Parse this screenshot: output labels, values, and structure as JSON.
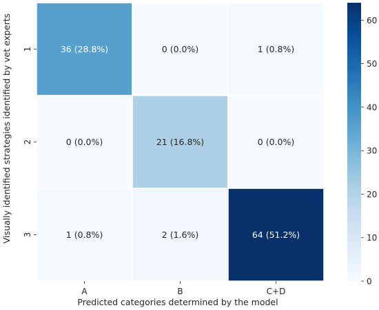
{
  "chart_data": {
    "type": "heatmap",
    "title": "",
    "xlabel": "Predicted categories determined by the model",
    "ylabel": "Visually identified strategies identified by vet experts",
    "x_categories": [
      "A",
      "B",
      "C+D"
    ],
    "y_categories": [
      "1",
      "2",
      "3"
    ],
    "values": [
      [
        36,
        0,
        1
      ],
      [
        0,
        21,
        0
      ],
      [
        1,
        2,
        64
      ]
    ],
    "cell_labels": [
      [
        "36 (28.8%)",
        "0 (0.0%)",
        "1 (0.8%)"
      ],
      [
        "0 (0.0%)",
        "21 (16.8%)",
        "0 (0.0%)"
      ],
      [
        "1 (0.8%)",
        "2 (1.6%)",
        "64 (51.2%)"
      ]
    ],
    "colormap": "Blues",
    "colorbar": {
      "range": [
        0,
        64
      ],
      "ticks": [
        "0",
        "10",
        "20",
        "30",
        "40",
        "50",
        "60"
      ],
      "tick_values": [
        0,
        10,
        20,
        30,
        40,
        50,
        60
      ]
    },
    "grid": false,
    "legend": "colorbar-right"
  }
}
